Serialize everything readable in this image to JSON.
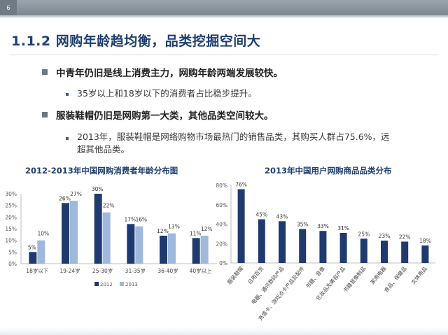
{
  "header": {
    "page_number": "6"
  },
  "slide": {
    "title": "1.1.2 网购年龄趋均衡，品类挖掘空间大",
    "bullets": [
      {
        "text": "中青年仍旧是线上消费主力，网购年龄两端发展较快。",
        "sub": [
          "35岁以上和18岁以下的消费者占比稳步提升。"
        ]
      },
      {
        "text": "服装鞋帽仍旧是网购第一大类，其他品类空间较大。",
        "sub": [
          "2013年，服装鞋帽是网络购物市场最热门的销售品类，其购买人群占75.6%，远",
          "超其他品类。"
        ]
      }
    ]
  },
  "chart_data": [
    {
      "type": "bar",
      "title": "2012-2013年中国网购消费者年龄分布图",
      "categories": [
        "18岁以下",
        "19-24岁",
        "25-30岁",
        "31-35岁",
        "36-40岁",
        "40岁以上"
      ],
      "series": [
        {
          "name": "2012",
          "values": [
            5,
            26,
            30,
            17,
            12,
            11
          ],
          "labels": [
            "5%",
            "26%",
            "30%",
            "17%",
            "12%",
            "11%"
          ],
          "color": "#1f3a6e"
        },
        {
          "name": "2013",
          "values": [
            10,
            27,
            22,
            16,
            13,
            12
          ],
          "labels": [
            "10%",
            "27%",
            "22%",
            "16%",
            "13%",
            "12%"
          ],
          "color": "#9fb9dc"
        }
      ],
      "yticks": [
        "0%",
        "5%",
        "10%",
        "15%",
        "20%",
        "25%",
        "30%"
      ],
      "ylim": [
        0,
        30
      ],
      "legend": "bottom",
      "grid": false
    },
    {
      "type": "bar",
      "title": "2013年中国用户网购商品品类分布",
      "categories": [
        "服装鞋帽",
        "日用百货",
        "电器、通讯数码产品",
        "充值卡、游戏点卡产品及配件",
        "书籍、音像",
        "化妆品及美容产品",
        "书籍音像制品",
        "家用电器",
        "食品、保健品",
        "文体用品"
      ],
      "series": [
        {
          "name": "",
          "values": [
            76,
            45,
            43,
            35,
            33,
            31,
            25,
            23,
            22,
            18
          ],
          "labels": [
            "76%",
            "45%",
            "43%",
            "35%",
            "33%",
            "31%",
            "25%",
            "23%",
            "22%",
            "18%"
          ],
          "color": "#1f3a6e"
        }
      ],
      "yticks": [
        "0%",
        "20%",
        "40%",
        "60%",
        "80%"
      ],
      "ylim": [
        0,
        80
      ],
      "legend": "none",
      "grid": false
    }
  ]
}
